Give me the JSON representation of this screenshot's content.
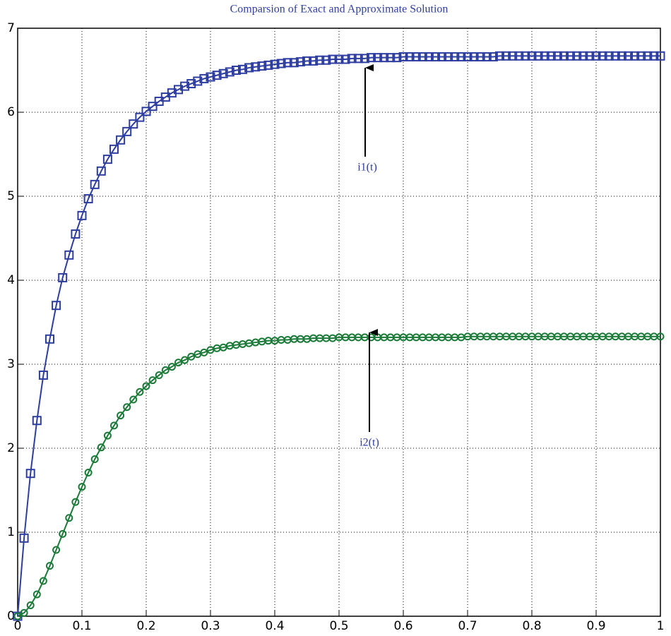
{
  "chart_data": {
    "type": "line",
    "title": "Comparsion of Exact and Approximate Solution",
    "x": [
      0,
      0.01,
      0.02,
      0.03,
      0.04,
      0.05,
      0.06,
      0.07,
      0.08,
      0.09,
      0.1,
      0.11,
      0.12,
      0.13,
      0.14,
      0.15,
      0.16,
      0.17,
      0.18,
      0.19,
      0.2,
      0.21,
      0.22,
      0.23,
      0.24,
      0.25,
      0.26,
      0.27,
      0.28,
      0.29,
      0.3,
      0.31,
      0.32,
      0.33,
      0.34,
      0.35,
      0.36,
      0.37,
      0.38,
      0.39,
      0.4,
      0.41,
      0.42,
      0.43,
      0.44,
      0.45,
      0.46,
      0.47,
      0.48,
      0.49,
      0.5,
      0.51,
      0.52,
      0.53,
      0.54,
      0.55,
      0.56,
      0.57,
      0.58,
      0.59,
      0.6,
      0.61,
      0.62,
      0.63,
      0.64,
      0.65,
      0.66,
      0.67,
      0.68,
      0.69,
      0.7,
      0.71,
      0.72,
      0.73,
      0.74,
      0.75,
      0.76,
      0.77,
      0.78,
      0.79,
      0.8,
      0.81,
      0.82,
      0.83,
      0.84,
      0.85,
      0.86,
      0.87,
      0.88,
      0.89,
      0.9,
      0.91,
      0.92,
      0.93,
      0.94,
      0.95,
      0.96,
      0.97,
      0.98,
      0.99,
      1
    ],
    "series": [
      {
        "color": "#2e3ea0",
        "marker": "square",
        "values": [
          0,
          0.93,
          1.7,
          2.33,
          2.87,
          3.3,
          3.7,
          4.03,
          4.3,
          4.55,
          4.77,
          4.97,
          5.14,
          5.3,
          5.44,
          5.56,
          5.67,
          5.77,
          5.86,
          5.94,
          6.01,
          6.07,
          6.13,
          6.18,
          6.23,
          6.27,
          6.31,
          6.34,
          6.37,
          6.4,
          6.42,
          6.44,
          6.46,
          6.48,
          6.5,
          6.51,
          6.53,
          6.54,
          6.55,
          6.56,
          6.57,
          6.58,
          6.59,
          6.59,
          6.6,
          6.61,
          6.61,
          6.62,
          6.62,
          6.63,
          6.63,
          6.63,
          6.64,
          6.64,
          6.64,
          6.65,
          6.65,
          6.65,
          6.65,
          6.65,
          6.66,
          6.66,
          6.66,
          6.66,
          6.66,
          6.66,
          6.66,
          6.66,
          6.66,
          6.66,
          6.66,
          6.66,
          6.66,
          6.66,
          6.66,
          6.67,
          6.67,
          6.67,
          6.67,
          6.67,
          6.67,
          6.67,
          6.67,
          6.67,
          6.67,
          6.67,
          6.67,
          6.67,
          6.67,
          6.67,
          6.67,
          6.67,
          6.67,
          6.67,
          6.67,
          6.67,
          6.67,
          6.67,
          6.67,
          6.67,
          6.67
        ]
      },
      {
        "color": "#1b7a38",
        "marker": "circle",
        "values": [
          0,
          0.04,
          0.13,
          0.26,
          0.42,
          0.6,
          0.79,
          0.98,
          1.17,
          1.36,
          1.54,
          1.71,
          1.87,
          2.01,
          2.15,
          2.27,
          2.39,
          2.49,
          2.58,
          2.67,
          2.74,
          2.81,
          2.87,
          2.93,
          2.97,
          3.02,
          3.05,
          3.09,
          3.12,
          3.14,
          3.17,
          3.19,
          3.2,
          3.22,
          3.23,
          3.24,
          3.25,
          3.26,
          3.27,
          3.28,
          3.28,
          3.29,
          3.29,
          3.3,
          3.3,
          3.3,
          3.31,
          3.31,
          3.31,
          3.31,
          3.32,
          3.32,
          3.32,
          3.32,
          3.32,
          3.32,
          3.32,
          3.32,
          3.32,
          3.32,
          3.32,
          3.32,
          3.32,
          3.32,
          3.32,
          3.32,
          3.32,
          3.32,
          3.32,
          3.32,
          3.33,
          3.33,
          3.33,
          3.33,
          3.33,
          3.33,
          3.33,
          3.33,
          3.33,
          3.33,
          3.33,
          3.33,
          3.33,
          3.33,
          3.33,
          3.33,
          3.33,
          3.33,
          3.33,
          3.33,
          3.33,
          3.33,
          3.33,
          3.33,
          3.33,
          3.33,
          3.33,
          3.33,
          3.33,
          3.33,
          3.33
        ]
      }
    ],
    "annotations": [
      {
        "text": "i1(t)"
      },
      {
        "text": "i2(t)"
      }
    ],
    "xlim": [
      0,
      1
    ],
    "xticks": [
      0,
      0.1,
      0.2,
      0.3,
      0.4,
      0.5,
      0.6,
      0.7,
      0.8,
      0.9,
      1
    ],
    "ylim": [
      0,
      7
    ],
    "yticks": [
      0,
      1,
      2,
      3,
      4,
      5,
      6,
      7
    ],
    "grid": true
  }
}
